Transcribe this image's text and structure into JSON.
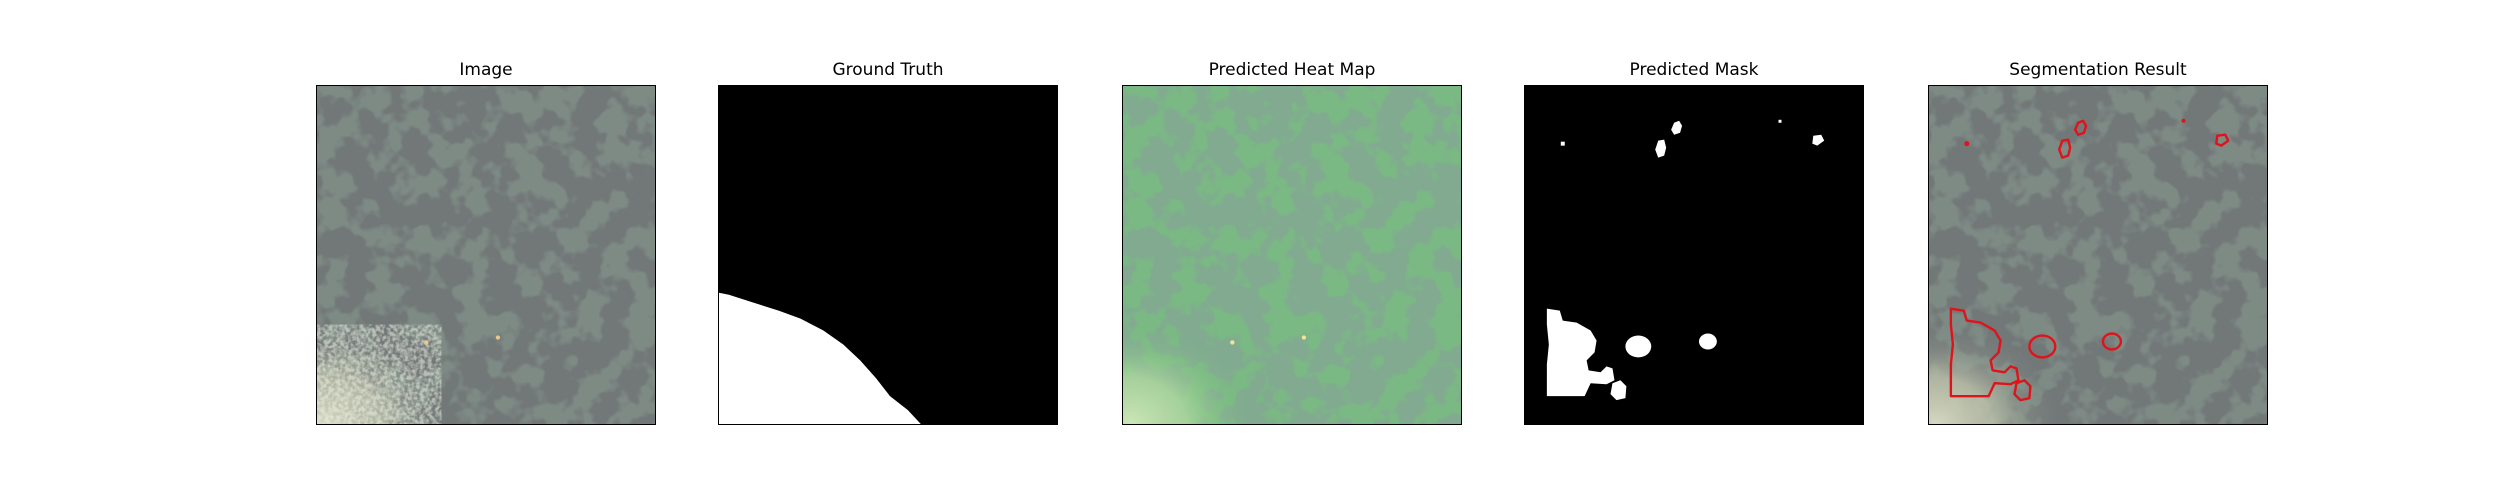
{
  "panels": [
    {
      "title": "Image"
    },
    {
      "title": "Ground Truth"
    },
    {
      "title": "Predicted Heat Map"
    },
    {
      "title": "Predicted Mask"
    },
    {
      "title": "Segmentation Result"
    }
  ],
  "colors": {
    "background": "#ffffff",
    "frame": "#000000",
    "mask_foreground": "#ffffff",
    "mask_background": "#000000",
    "heatmap_overlay": "#5fd36a",
    "segmentation_contour": "#e0121a",
    "ground_dark_spots": "#2b2f2f",
    "ground_base": "#7e8b85",
    "ground_bright_region": "#c7ccb4"
  },
  "icons": []
}
